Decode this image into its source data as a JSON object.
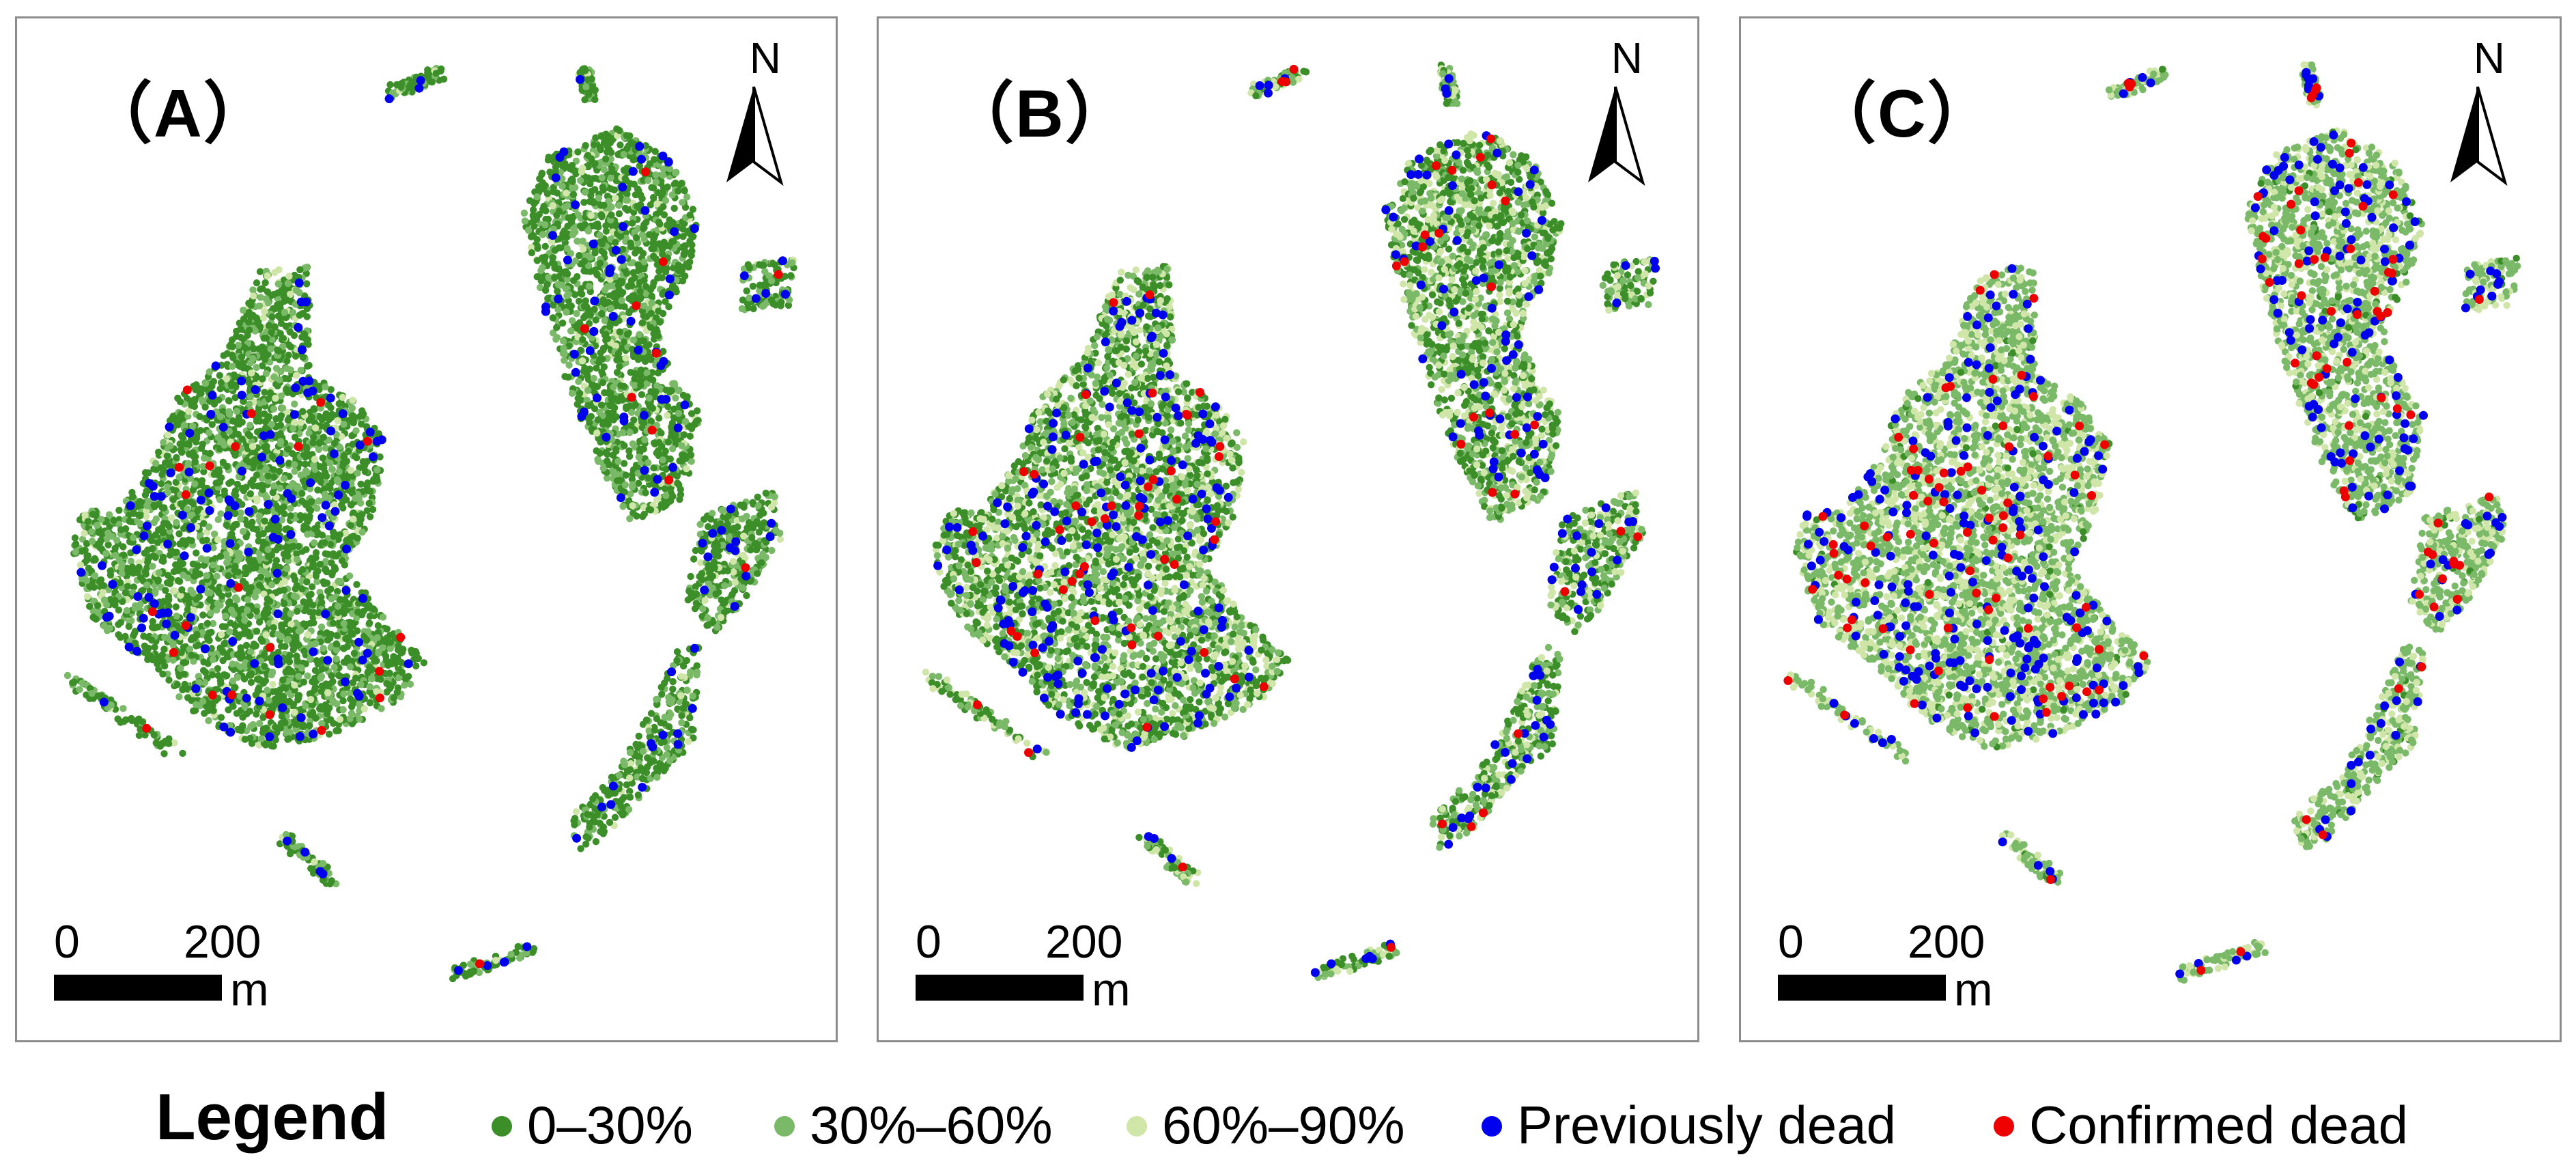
{
  "colors": {
    "class_0_30": "#3c8f28",
    "class_30_60": "#7ab968",
    "class_60_90": "#cfe6a8",
    "previously_dead": "#0000ee",
    "confirmed_dead": "#ee0000",
    "panel_border": "#8c8c8c"
  },
  "panels": [
    {
      "label": "（A）",
      "north": "N",
      "scale": {
        "zero": "0",
        "max": "200",
        "unit": "m"
      }
    },
    {
      "label": "（B）",
      "north": "N",
      "scale": {
        "zero": "0",
        "max": "200",
        "unit": "m"
      }
    },
    {
      "label": "（C）",
      "north": "N",
      "scale": {
        "zero": "0",
        "max": "200",
        "unit": "m"
      }
    }
  ],
  "legend": {
    "title": "Legend",
    "items": [
      {
        "label": "0–30%",
        "color": "#3c8f28"
      },
      {
        "label": "30%–60%",
        "color": "#7ab968"
      },
      {
        "label": "60%–90%",
        "color": "#cfe6a8"
      },
      {
        "label": "Previously dead",
        "color": "#0000ee"
      },
      {
        "label": "Confirmed dead",
        "color": "#ee0000"
      }
    ]
  },
  "class_mix": [
    {
      "panel": "A",
      "class_0_30": 0.66,
      "class_30_60": 0.28,
      "class_60_90": 0.06,
      "previously_dead": 0.035,
      "confirmed_dead": 0.005
    },
    {
      "panel": "B",
      "class_0_30": 0.42,
      "class_30_60": 0.33,
      "class_60_90": 0.25,
      "previously_dead": 0.05,
      "confirmed_dead": 0.012
    },
    {
      "panel": "C",
      "class_0_30": 0.04,
      "class_30_60": 0.64,
      "class_60_90": 0.32,
      "previously_dead": 0.06,
      "confirmed_dead": 0.022
    }
  ]
}
